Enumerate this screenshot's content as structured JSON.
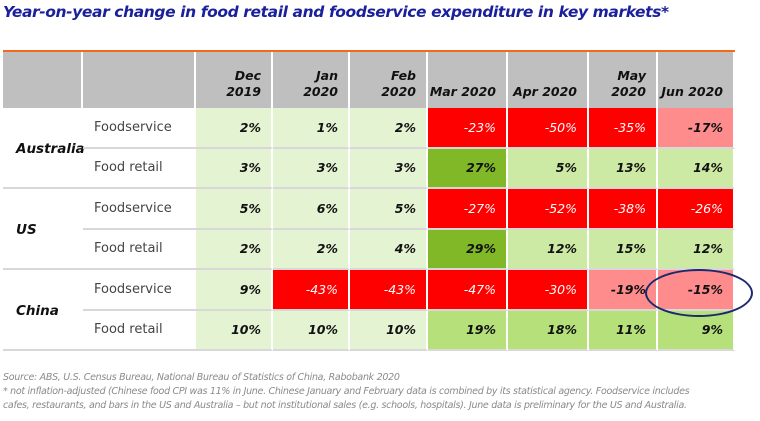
{
  "title": "Year-on-year change in food retail and foodservice expenditure in key markets*",
  "colors": {
    "title": "#1a1f9c",
    "accent_line": "#f26a1b",
    "header_bg": "#bfbfbf",
    "pale_green": "#e4f3d2",
    "light_green": "#cdeaa4",
    "mid_green": "#b6e07a",
    "dark_green": "#80b828",
    "red": "#ff0000",
    "pink": "#ff8c8c",
    "highlight_ellipse": "#1a2a6c"
  },
  "chart_data": {
    "type": "table",
    "title": "Year-on-year change in food retail and foodservice expenditure in key markets*",
    "columns": [
      {
        "line1": "Dec",
        "line2": "2019"
      },
      {
        "line1": "Jan",
        "line2": "2020"
      },
      {
        "line1": "Feb",
        "line2": "2020"
      },
      {
        "line1": "",
        "line2": "Mar 2020"
      },
      {
        "line1": "",
        "line2": "Apr 2020"
      },
      {
        "line1": "May",
        "line2": "2020"
      },
      {
        "line1": "",
        "line2": "Jun 2020"
      }
    ],
    "countries": [
      {
        "name": "Australia",
        "rows": [
          {
            "product": "Foodservice",
            "values": [
              "2%",
              "1%",
              "2%",
              "-23%",
              "-50%",
              "-35%",
              "-17%"
            ],
            "shades": [
              "pale",
              "pale",
              "pale",
              "red",
              "red",
              "red",
              "pink"
            ]
          },
          {
            "product": "Food retail",
            "values": [
              "3%",
              "3%",
              "3%",
              "27%",
              "5%",
              "13%",
              "14%"
            ],
            "shades": [
              "pale",
              "pale",
              "pale",
              "dark",
              "light",
              "light",
              "light"
            ]
          }
        ]
      },
      {
        "name": "US",
        "rows": [
          {
            "product": "Foodservice",
            "values": [
              "5%",
              "6%",
              "5%",
              "-27%",
              "-52%",
              "-38%",
              "-26%"
            ],
            "shades": [
              "pale",
              "pale",
              "pale",
              "red",
              "red",
              "red",
              "red"
            ]
          },
          {
            "product": "Food retail",
            "values": [
              "2%",
              "2%",
              "4%",
              "29%",
              "12%",
              "15%",
              "12%"
            ],
            "shades": [
              "pale",
              "pale",
              "pale",
              "dark",
              "light",
              "light",
              "light"
            ]
          }
        ]
      },
      {
        "name": "China",
        "rows": [
          {
            "product": "Foodservice",
            "values": [
              "9%",
              "-43%",
              "-43%",
              "-47%",
              "-30%",
              "-19%",
              "-15%"
            ],
            "shades": [
              "pale",
              "red",
              "red",
              "red",
              "red",
              "pink",
              "pink"
            ]
          },
          {
            "product": "Food retail",
            "values": [
              "10%",
              "10%",
              "10%",
              "19%",
              "18%",
              "11%",
              "9%"
            ],
            "shades": [
              "pale",
              "pale",
              "pale",
              "mid",
              "mid",
              "mid",
              "mid"
            ]
          }
        ]
      }
    ],
    "highlighted_cell": {
      "country": "China",
      "product": "Foodservice",
      "column": "Jun 2020",
      "value": "-15%"
    }
  },
  "footnotes": {
    "source": "Source: ABS, U.S. Census Bureau, National Bureau of Statistics of China, Rabobank 2020",
    "note_line1": "* not inflation-adjusted (Chinese food CPI was 11% in June. Chinese January and February data is combined by its statistical agency. Foodservice includes",
    "note_line2": "cafes, restaurants, and bars in the US and Australia – but not institutional sales (e.g. schools, hospitals). June data is preliminary for the US and Australia."
  }
}
